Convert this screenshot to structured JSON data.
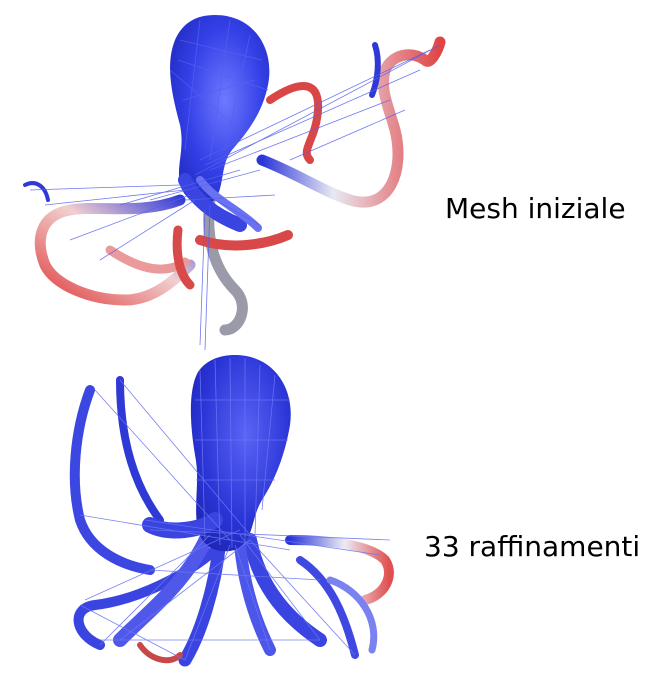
{
  "figures": [
    {
      "caption": "Mesh iniziale",
      "description_colors": {
        "body": "#2f3ad8",
        "wire": "#5a64f0",
        "warm": "#e04848",
        "light": "#f3f3f7"
      }
    },
    {
      "caption": "33 raffinamenti",
      "description_colors": {
        "body": "#2a34d6",
        "wire": "#5a64f0",
        "warm": "#e05050",
        "light": "#f3f3f7"
      }
    }
  ]
}
